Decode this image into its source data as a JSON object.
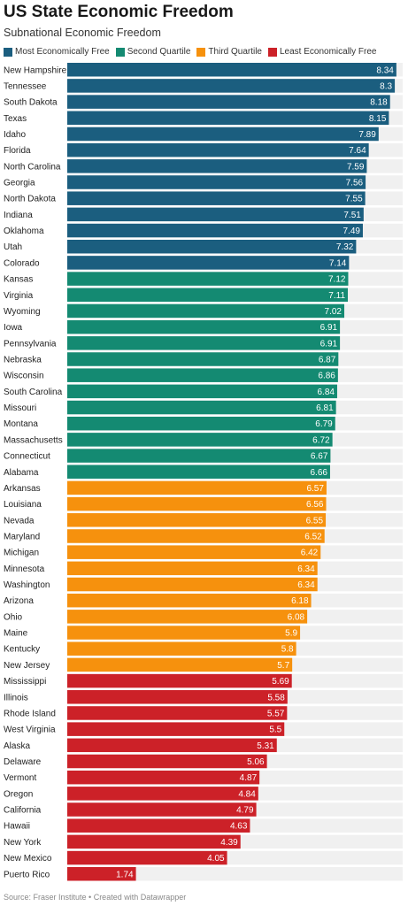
{
  "header": {
    "title": "US State Economic Freedom",
    "subtitle": "Subnational Economic Freedom"
  },
  "footer": {
    "source": "Source: Fraser Institute • Created with Datawrapper"
  },
  "colors": {
    "most": "#1b5e7f",
    "second": "#148a72",
    "third": "#f6910d",
    "least": "#cc2128",
    "track": "#f0f0f0"
  },
  "chart_data": {
    "type": "bar",
    "orientation": "horizontal",
    "title": "US State Economic Freedom",
    "subtitle": "Subnational Economic Freedom",
    "xlim": [
      0,
      8.5
    ],
    "legend": [
      {
        "key": "most",
        "label": "Most Economically Free"
      },
      {
        "key": "second",
        "label": "Second Quartile"
      },
      {
        "key": "third",
        "label": "Third Quartile"
      },
      {
        "key": "least",
        "label": "Least Economically Free"
      }
    ],
    "rows": [
      {
        "category": "New Hampshire",
        "value": 8.34,
        "group": "most"
      },
      {
        "category": "Tennessee",
        "value": 8.3,
        "group": "most"
      },
      {
        "category": "South Dakota",
        "value": 8.18,
        "group": "most"
      },
      {
        "category": "Texas",
        "value": 8.15,
        "group": "most"
      },
      {
        "category": "Idaho",
        "value": 7.89,
        "group": "most"
      },
      {
        "category": "Florida",
        "value": 7.64,
        "group": "most"
      },
      {
        "category": "North Carolina",
        "value": 7.59,
        "group": "most"
      },
      {
        "category": "Georgia",
        "value": 7.56,
        "group": "most"
      },
      {
        "category": "North Dakota",
        "value": 7.55,
        "group": "most"
      },
      {
        "category": "Indiana",
        "value": 7.51,
        "group": "most"
      },
      {
        "category": "Oklahoma",
        "value": 7.49,
        "group": "most"
      },
      {
        "category": "Utah",
        "value": 7.32,
        "group": "most"
      },
      {
        "category": "Colorado",
        "value": 7.14,
        "group": "most"
      },
      {
        "category": "Kansas",
        "value": 7.12,
        "group": "second"
      },
      {
        "category": "Virginia",
        "value": 7.11,
        "group": "second"
      },
      {
        "category": "Wyoming",
        "value": 7.02,
        "group": "second"
      },
      {
        "category": "Iowa",
        "value": 6.91,
        "group": "second"
      },
      {
        "category": "Pennsylvania",
        "value": 6.91,
        "group": "second"
      },
      {
        "category": "Nebraska",
        "value": 6.87,
        "group": "second"
      },
      {
        "category": "Wisconsin",
        "value": 6.86,
        "group": "second"
      },
      {
        "category": "South Carolina",
        "value": 6.84,
        "group": "second"
      },
      {
        "category": "Missouri",
        "value": 6.81,
        "group": "second"
      },
      {
        "category": "Montana",
        "value": 6.79,
        "group": "second"
      },
      {
        "category": "Massachusetts",
        "value": 6.72,
        "group": "second"
      },
      {
        "category": "Connecticut",
        "value": 6.67,
        "group": "second"
      },
      {
        "category": "Alabama",
        "value": 6.66,
        "group": "second"
      },
      {
        "category": "Arkansas",
        "value": 6.57,
        "group": "third"
      },
      {
        "category": "Louisiana",
        "value": 6.56,
        "group": "third"
      },
      {
        "category": "Nevada",
        "value": 6.55,
        "group": "third"
      },
      {
        "category": "Maryland",
        "value": 6.52,
        "group": "third"
      },
      {
        "category": "Michigan",
        "value": 6.42,
        "group": "third"
      },
      {
        "category": "Minnesota",
        "value": 6.34,
        "group": "third"
      },
      {
        "category": "Washington",
        "value": 6.34,
        "group": "third"
      },
      {
        "category": "Arizona",
        "value": 6.18,
        "group": "third"
      },
      {
        "category": "Ohio",
        "value": 6.08,
        "group": "third"
      },
      {
        "category": "Maine",
        "value": 5.9,
        "group": "third"
      },
      {
        "category": "Kentucky",
        "value": 5.8,
        "group": "third"
      },
      {
        "category": "New Jersey",
        "value": 5.7,
        "group": "third"
      },
      {
        "category": "Mississippi",
        "value": 5.69,
        "group": "least"
      },
      {
        "category": "Illinois",
        "value": 5.58,
        "group": "least"
      },
      {
        "category": "Rhode Island",
        "value": 5.57,
        "group": "least"
      },
      {
        "category": "West Virginia",
        "value": 5.5,
        "group": "least"
      },
      {
        "category": "Alaska",
        "value": 5.31,
        "group": "least"
      },
      {
        "category": "Delaware",
        "value": 5.06,
        "group": "least"
      },
      {
        "category": "Vermont",
        "value": 4.87,
        "group": "least"
      },
      {
        "category": "Oregon",
        "value": 4.84,
        "group": "least"
      },
      {
        "category": "California",
        "value": 4.79,
        "group": "least"
      },
      {
        "category": "Hawaii",
        "value": 4.63,
        "group": "least"
      },
      {
        "category": "New York",
        "value": 4.39,
        "group": "least"
      },
      {
        "category": "New Mexico",
        "value": 4.05,
        "group": "least"
      },
      {
        "category": "Puerto Rico",
        "value": 1.74,
        "group": "least"
      }
    ]
  }
}
